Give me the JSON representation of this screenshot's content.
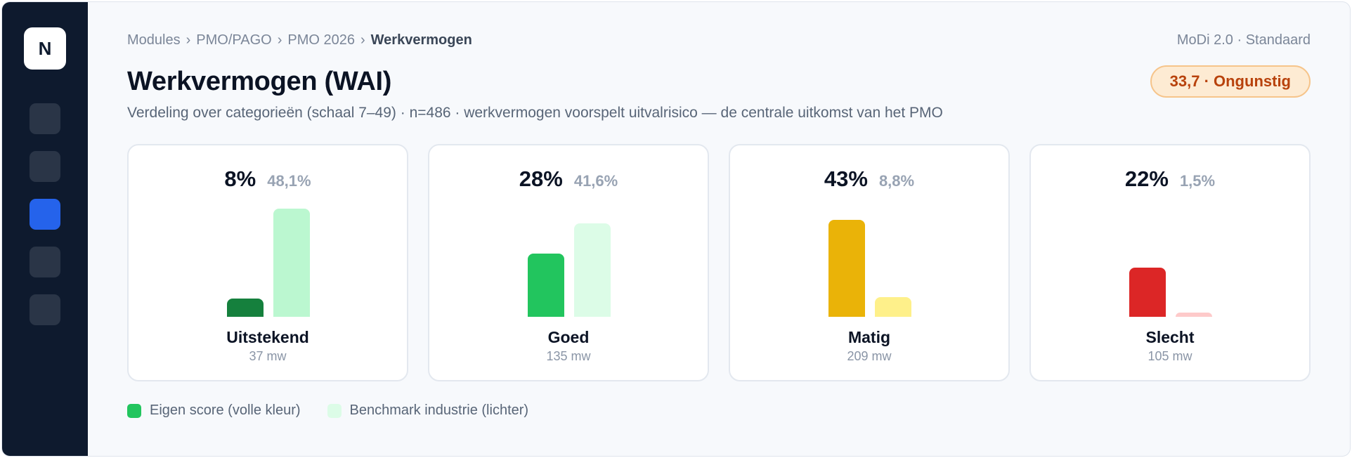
{
  "sidebar": {
    "logo_letter": "N",
    "items": [
      {
        "id": "nav-1",
        "active": false
      },
      {
        "id": "nav-2",
        "active": false
      },
      {
        "id": "nav-3",
        "active": true
      },
      {
        "id": "nav-4",
        "active": false
      },
      {
        "id": "nav-5",
        "active": false
      }
    ]
  },
  "breadcrumb": {
    "items": [
      "Modules",
      "PMO/PAGO",
      "PMO 2026"
    ],
    "current": "Werkvermogen",
    "separator": "›"
  },
  "version_label": "MoDi 2.0 · Standaard",
  "page_title": "Werkvermogen (WAI)",
  "status_badge": "33,7 · Ongunstig",
  "subtitle": "Verdeling over categorieën (schaal 7–49) · n=486 · werkvermogen voorspelt uitvalrisico — de centrale uitkomst van het PMO",
  "categories": [
    {
      "label": "Uitstekend",
      "own_pct": "8%",
      "bench_pct": "48,1%",
      "own_value": 8,
      "bench_value": 48.1,
      "count": "37 mw",
      "own_color": "#15803d",
      "bench_color": "#bbf7d0"
    },
    {
      "label": "Goed",
      "own_pct": "28%",
      "bench_pct": "41,6%",
      "own_value": 28,
      "bench_value": 41.6,
      "count": "135 mw",
      "own_color": "#22c55e",
      "bench_color": "#dcfce7"
    },
    {
      "label": "Matig",
      "own_pct": "43%",
      "bench_pct": "8,8%",
      "own_value": 43,
      "bench_value": 8.8,
      "count": "209 mw",
      "own_color": "#eab308",
      "bench_color": "#fef08a"
    },
    {
      "label": "Slecht",
      "own_pct": "22%",
      "bench_pct": "1,5%",
      "own_value": 22,
      "bench_value": 1.5,
      "count": "105 mw",
      "own_color": "#dc2626",
      "bench_color": "#fecaca"
    }
  ],
  "legend": {
    "own_label": "Eigen score (volle kleur)",
    "own_color": "#22c55e",
    "bench_label": "Benchmark industrie (lichter)",
    "bench_color": "#dcfce7"
  }
}
